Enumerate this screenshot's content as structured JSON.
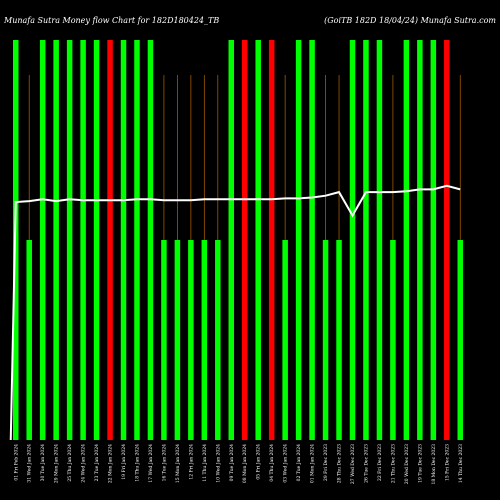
{
  "title_left": "Munafa Sutra Money flow Chart for 182D180424_TB",
  "title_right": "(GoiTB 182D 18/04/24) Munafa Sutra.com",
  "colors": {
    "background": "#000000",
    "up": "#00ff00",
    "down": "#ff0000",
    "guide": "#a05a00",
    "line": "#ffffff"
  },
  "chart_data": {
    "type": "bar",
    "title": "Munafa Sutra Money flow Chart for 182D180424_TB",
    "subtitle": "(GoiTB 182D 18/04/24) Munafa Sutra.com",
    "ylim": [
      0,
      100
    ],
    "categories": [
      "01 Fri Feb 2024",
      "31 Wed Jan 2024",
      "30 Tue Jan 2024",
      "29 Mon Jan 2024",
      "25 Thu Jan 2024",
      "24 Wed Jan 2024",
      "23 Tue Jan 2024",
      "22 Mon Jan 2024",
      "19 Fri Jan 2024",
      "18 Thu Jan 2024",
      "17 Wed Jan 2024",
      "16 Tue Jan 2024",
      "15 Mon Jan 2024",
      "12 Fri Jan 2024",
      "11 Thu Jan 2024",
      "10 Wed Jan 2024",
      "09 Tue Jan 2024",
      "08 Mon Jan 2024",
      "05 Fri Jan 2024",
      "04 Thu Jan 2024",
      "03 Wed Jan 2024",
      "02 Tue Jan 2024",
      "01 Mon Jan 2024",
      "29 Fri Dec 2023",
      "28 Thu Dec 2023",
      "27 Wed Dec 2023",
      "26 Tue Dec 2023",
      "22 Fri Dec 2023",
      "21 Thu Dec 2023",
      "20 Wed Dec 2023",
      "19 Tue Dec 2023",
      "18 Mon Dec 2023",
      "15 Fri Dec 2023",
      "14 Thu Dec 2023"
    ],
    "series": [
      {
        "direction": [
          "up",
          "up",
          "up",
          "up",
          "up",
          "up",
          "up",
          "down",
          "up",
          "up",
          "up",
          "up",
          "up",
          "up",
          "up",
          "up",
          "up",
          "down",
          "up",
          "down",
          "up",
          "up",
          "up",
          "up",
          "up",
          "up",
          "up",
          "up",
          "up",
          "up",
          "up",
          "up",
          "down",
          "up"
        ],
        "values": [
          100,
          50,
          100,
          100,
          100,
          100,
          100,
          100,
          100,
          100,
          100,
          50,
          50,
          50,
          50,
          50,
          100,
          100,
          100,
          100,
          50,
          100,
          100,
          50,
          50,
          100,
          100,
          100,
          50,
          100,
          100,
          100,
          100,
          50
        ]
      }
    ],
    "line_values": [
      60.5,
      60.6,
      60.8,
      60.6,
      60.8,
      60.7,
      60.7,
      60.7,
      60.7,
      60.8,
      60.8,
      60.7,
      60.7,
      60.7,
      60.8,
      60.8,
      60.8,
      60.8,
      60.8,
      60.8,
      60.9,
      60.9,
      61.0,
      61.2,
      61.6,
      59.0,
      61.6,
      61.6,
      61.6,
      61.7,
      61.9,
      61.9,
      62.3,
      61.9
    ],
    "guide_at_up_bars": true
  }
}
